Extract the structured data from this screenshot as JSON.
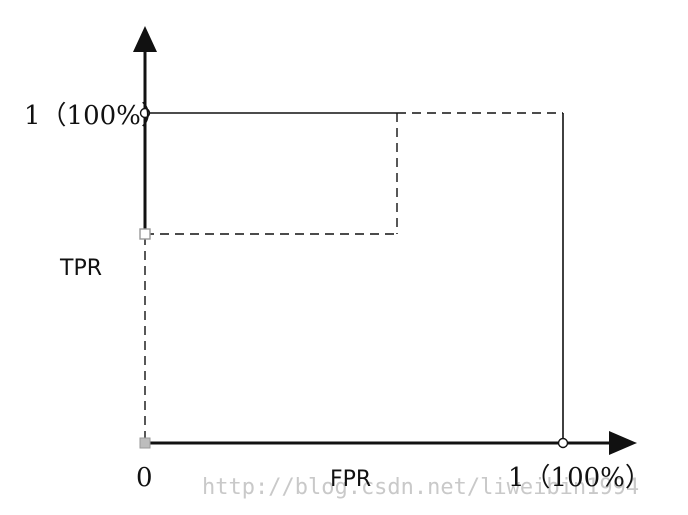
{
  "diagram": {
    "y_axis_label": "TPR",
    "x_axis_label": "FPR",
    "y_max_label": "1（100%）",
    "x_max_label": "1（100%）",
    "origin_label": "0",
    "watermark": "http://blog.csdn.net/liweibin1994",
    "colors": {
      "line": "#111111",
      "marker_gray": "#bdbdbd",
      "watermark": "#c9c9c9"
    }
  }
}
